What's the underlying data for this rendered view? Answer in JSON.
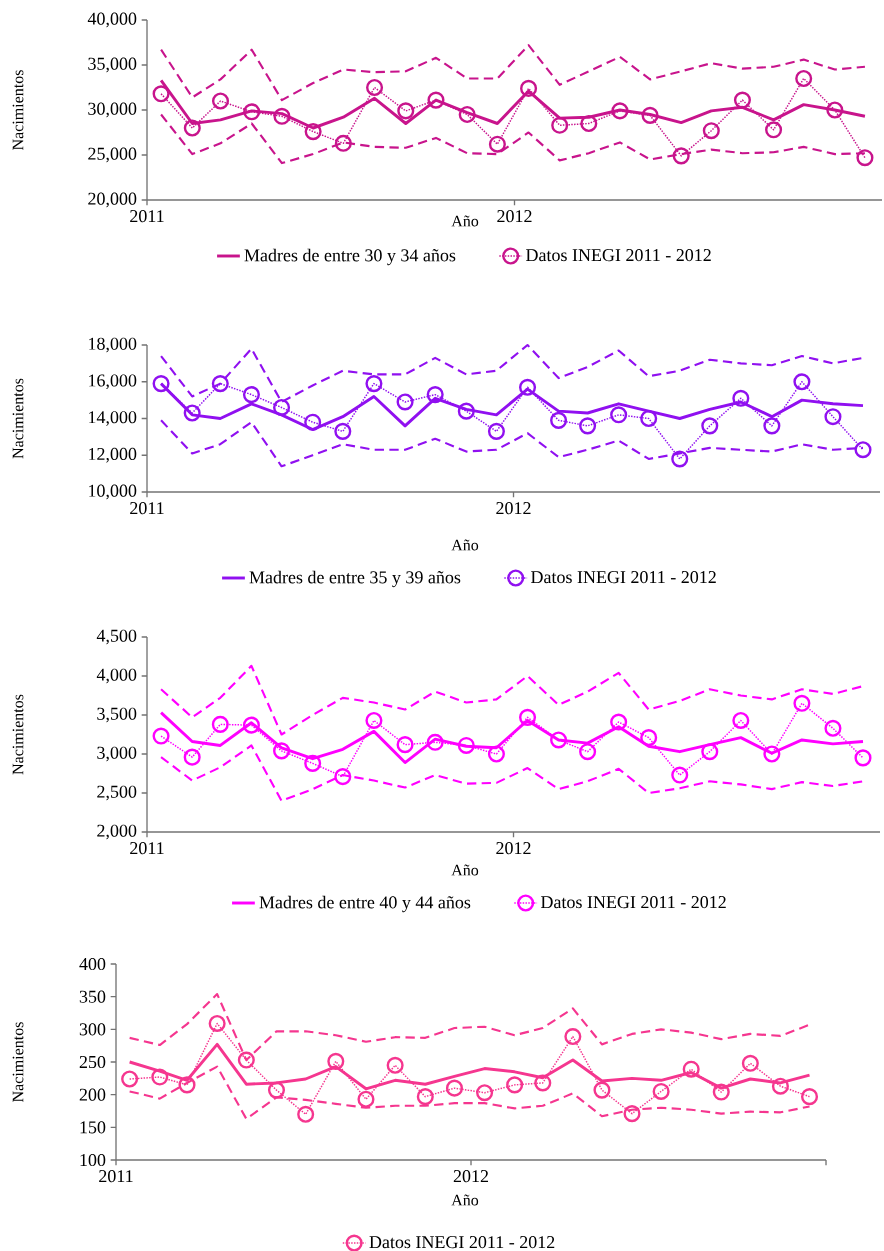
{
  "chart_data": [
    {
      "type": "line",
      "xlabel": "Año",
      "ylabel": "Nacimientos",
      "legend": "bottom",
      "x": [
        "2011-01-15",
        "2011-02-15",
        "2011-03-15",
        "2011-04-15",
        "2011-05-15",
        "2011-06-15",
        "2011-07-15",
        "2011-08-15",
        "2011-09-15",
        "2011-10-15",
        "2011-11-15",
        "2011-12-15",
        "2012-01-15",
        "2012-02-15",
        "2012-03-15",
        "2012-04-15",
        "2012-05-15",
        "2012-06-15",
        "2012-07-15",
        "2012-08-15",
        "2012-09-15",
        "2012-10-15",
        "2012-11-15",
        "2012-12-15"
      ],
      "xlim": [
        "2011-01-01",
        "2013-01-01"
      ],
      "xticks": [
        {
          "value": "2011-01-01",
          "label": "2011"
        },
        {
          "value": "2012-01-01",
          "label": "2012"
        }
      ],
      "ylim": [
        20000,
        40000
      ],
      "yticks": [
        {
          "value": 20000,
          "label": "20,000"
        },
        {
          "value": 25000,
          "label": "25,000"
        },
        {
          "value": 30000,
          "label": "30,000"
        },
        {
          "value": 35000,
          "label": "35,000"
        },
        {
          "value": 40000,
          "label": "40,000"
        }
      ],
      "series": [
        {
          "name": "Madres de entre 30 y 34 años",
          "color": "#c8148c",
          "line_style": "solid",
          "marker": "none",
          "values": [
            33300,
            28500,
            28900,
            29900,
            29600,
            28000,
            29200,
            31300,
            28500,
            31100,
            29700,
            28500,
            32100,
            29100,
            29200,
            30000,
            29500,
            28600,
            29900,
            30300,
            28900,
            30600,
            30000,
            29300
          ]
        },
        {
          "color": "#c8148c",
          "line_style": "dashed",
          "marker": "none",
          "values": [
            36700,
            31400,
            33400,
            36700,
            31100,
            33000,
            34500,
            34200,
            34300,
            35800,
            33500,
            33500,
            37200,
            32800,
            34300,
            35900,
            33400,
            34300,
            35200,
            34600,
            34800,
            35600,
            34500,
            34800
          ]
        },
        {
          "color": "#c8148c",
          "line_style": "dashed",
          "marker": "none",
          "values": [
            29500,
            25100,
            26300,
            28500,
            24100,
            25100,
            26400,
            25900,
            25800,
            26900,
            25200,
            25100,
            27500,
            24400,
            25200,
            26400,
            24500,
            25100,
            25600,
            25200,
            25300,
            25900,
            25100,
            25200
          ]
        },
        {
          "name": "Datos INEGI 2011 - 2012",
          "color": "#c8148c",
          "line_style": "dotted",
          "marker": "circle",
          "values": [
            31800,
            28000,
            31000,
            29800,
            29300,
            27600,
            26300,
            32500,
            29900,
            31100,
            29500,
            26200,
            32400,
            28300,
            28500,
            29900,
            29400,
            24900,
            27700,
            31100,
            27800,
            33500,
            30000,
            24700
          ]
        }
      ]
    },
    {
      "type": "line",
      "xlabel": "Año",
      "ylabel": "Nacimientos",
      "legend": "bottom",
      "x": [
        "2011-01-15",
        "2011-02-15",
        "2011-03-15",
        "2011-04-15",
        "2011-05-15",
        "2011-06-15",
        "2011-07-15",
        "2011-08-15",
        "2011-09-15",
        "2011-10-15",
        "2011-11-15",
        "2011-12-15",
        "2012-01-15",
        "2012-02-15",
        "2012-03-15",
        "2012-04-15",
        "2012-05-15",
        "2012-06-15",
        "2012-07-15",
        "2012-08-15",
        "2012-09-15",
        "2012-10-15",
        "2012-11-15",
        "2012-12-15"
      ],
      "xlim": [
        "2011-01-01",
        "2013-01-01"
      ],
      "xticks": [
        {
          "value": "2011-01-01",
          "label": "2011"
        },
        {
          "value": "2012-01-01",
          "label": "2012"
        }
      ],
      "ylim": [
        10000,
        18000
      ],
      "yticks": [
        {
          "value": 10000,
          "label": "10,000"
        },
        {
          "value": 12000,
          "label": "12,000"
        },
        {
          "value": 14000,
          "label": "14,000"
        },
        {
          "value": 16000,
          "label": "16,000"
        },
        {
          "value": 18000,
          "label": "18,000"
        }
      ],
      "series": [
        {
          "name": "Madres de entre 35 y 39 años",
          "color": "#9010f0",
          "line_style": "solid",
          "marker": "none",
          "values": [
            15900,
            14200,
            14000,
            14800,
            14200,
            13400,
            14100,
            15200,
            13600,
            15100,
            14500,
            14200,
            15600,
            14400,
            14300,
            14800,
            14400,
            14000,
            14500,
            14900,
            14100,
            15000,
            14800,
            14700
          ]
        },
        {
          "color": "#9010f0",
          "line_style": "dashed",
          "marker": "none",
          "values": [
            17400,
            15200,
            15900,
            17800,
            14900,
            15800,
            16600,
            16400,
            16400,
            17300,
            16400,
            16600,
            18000,
            16200,
            16800,
            17700,
            16300,
            16600,
            17200,
            17000,
            16900,
            17400,
            17000,
            17300
          ]
        },
        {
          "color": "#9010f0",
          "line_style": "dashed",
          "marker": "none",
          "values": [
            13900,
            12100,
            12600,
            13800,
            11400,
            12000,
            12600,
            12300,
            12300,
            12900,
            12200,
            12300,
            13200,
            11900,
            12300,
            12800,
            11800,
            12100,
            12400,
            12300,
            12200,
            12600,
            12300,
            12400
          ]
        },
        {
          "name": "Datos INEGI 2011 - 2012",
          "color": "#9010f0",
          "line_style": "dotted",
          "marker": "circle",
          "values": [
            15900,
            14300,
            15900,
            15300,
            14600,
            13800,
            13300,
            15900,
            14900,
            15300,
            14400,
            13300,
            15700,
            13900,
            13600,
            14200,
            14000,
            11800,
            13600,
            15100,
            13600,
            16000,
            14100,
            12300
          ]
        }
      ]
    },
    {
      "type": "line",
      "xlabel": "Año",
      "ylabel": "Nacimientos",
      "legend": "bottom",
      "x": [
        "2011-01-15",
        "2011-02-15",
        "2011-03-15",
        "2011-04-15",
        "2011-05-15",
        "2011-06-15",
        "2011-07-15",
        "2011-08-15",
        "2011-09-15",
        "2011-10-15",
        "2011-11-15",
        "2011-12-15",
        "2012-01-15",
        "2012-02-15",
        "2012-03-15",
        "2012-04-15",
        "2012-05-15",
        "2012-06-15",
        "2012-07-15",
        "2012-08-15",
        "2012-09-15",
        "2012-10-15",
        "2012-11-15",
        "2012-12-15"
      ],
      "xlim": [
        "2011-01-01",
        "2013-01-01"
      ],
      "xticks": [
        {
          "value": "2011-01-01",
          "label": "2011"
        },
        {
          "value": "2012-01-01",
          "label": "2012"
        }
      ],
      "ylim": [
        2000,
        4500
      ],
      "yticks": [
        {
          "value": 2000,
          "label": "2,000"
        },
        {
          "value": 2500,
          "label": "2,500"
        },
        {
          "value": 3000,
          "label": "3,000"
        },
        {
          "value": 3500,
          "label": "3,500"
        },
        {
          "value": 4000,
          "label": "4,000"
        },
        {
          "value": 4500,
          "label": "4,500"
        }
      ],
      "series": [
        {
          "name": "Madres de entre 40 y 44 años",
          "color": "#ff00ff",
          "line_style": "solid",
          "marker": "none",
          "values": [
            3530,
            3160,
            3110,
            3400,
            3080,
            2940,
            3060,
            3290,
            2890,
            3190,
            3100,
            3080,
            3430,
            3180,
            3140,
            3350,
            3100,
            3030,
            3120,
            3210,
            3010,
            3180,
            3130,
            3160
          ]
        },
        {
          "color": "#ff00ff",
          "line_style": "dashed",
          "marker": "none",
          "values": [
            3830,
            3470,
            3720,
            4130,
            3250,
            3500,
            3720,
            3660,
            3570,
            3800,
            3660,
            3700,
            4000,
            3630,
            3800,
            4040,
            3570,
            3680,
            3830,
            3750,
            3700,
            3830,
            3770,
            3870
          ]
        },
        {
          "color": "#ff00ff",
          "line_style": "dashed",
          "marker": "none",
          "values": [
            2960,
            2660,
            2830,
            3110,
            2400,
            2550,
            2730,
            2660,
            2570,
            2730,
            2620,
            2630,
            2820,
            2550,
            2650,
            2810,
            2500,
            2560,
            2650,
            2610,
            2550,
            2640,
            2590,
            2650
          ]
        },
        {
          "name": "Datos INEGI 2011 - 2012",
          "color": "#ff00ff",
          "line_style": "dotted",
          "marker": "circle",
          "values": [
            3230,
            2960,
            3380,
            3370,
            3040,
            2880,
            2710,
            3430,
            3120,
            3150,
            3110,
            3000,
            3470,
            3180,
            3030,
            3410,
            3210,
            2730,
            3030,
            3430,
            3000,
            3650,
            3330,
            2950
          ]
        }
      ]
    },
    {
      "type": "line",
      "xlabel": "Año",
      "ylabel": "Nacimientos",
      "legend": "bottom",
      "x": [
        "2011-01-15",
        "2011-02-15",
        "2011-03-15",
        "2011-04-15",
        "2011-05-15",
        "2011-06-15",
        "2011-07-15",
        "2011-08-15",
        "2011-09-15",
        "2011-10-15",
        "2011-11-15",
        "2011-12-15",
        "2012-01-15",
        "2012-02-15",
        "2012-03-15",
        "2012-04-15",
        "2012-05-15",
        "2012-06-15",
        "2012-07-15",
        "2012-08-15",
        "2012-09-15",
        "2012-10-15",
        "2012-11-15",
        "2012-12-15"
      ],
      "xlim": [
        "2011-01-01",
        "2013-01-01"
      ],
      "xticks": [
        {
          "value": "2011-01-01",
          "label": "2011"
        },
        {
          "value": "2012-01-01",
          "label": "2012"
        },
        {
          "value": "2013-01-01",
          "label": null
        }
      ],
      "ylim": [
        100,
        400
      ],
      "yticks": [
        100,
        150,
        200,
        250,
        300,
        350,
        400
      ],
      "series": [
        {
          "color": "#f5368f",
          "line_style": "solid",
          "marker": "none",
          "values": [
            250,
            236,
            222,
            277,
            216,
            218,
            224,
            243,
            209,
            222,
            216,
            228,
            240,
            235,
            226,
            253,
            221,
            225,
            222,
            234,
            210,
            224,
            218,
            230
          ]
        },
        {
          "color": "#f5368f",
          "line_style": "dashed",
          "marker": "none",
          "values": [
            287,
            276,
            308,
            354,
            253,
            297,
            297,
            291,
            281,
            288,
            287,
            302,
            304,
            291,
            302,
            332,
            277,
            293,
            300,
            295,
            285,
            293,
            290,
            307
          ]
        },
        {
          "color": "#f5368f",
          "line_style": "dashed",
          "marker": "none",
          "values": [
            205,
            194,
            218,
            243,
            163,
            196,
            192,
            186,
            180,
            183,
            183,
            187,
            187,
            179,
            183,
            202,
            167,
            177,
            180,
            177,
            171,
            174,
            173,
            182
          ]
        },
        {
          "name": "Datos INEGI 2011 - 2012",
          "color": "#f5368f",
          "line_style": "dotted",
          "marker": "circle",
          "values": [
            224,
            227,
            215,
            309,
            253,
            207,
            170,
            251,
            193,
            245,
            197,
            210,
            203,
            215,
            218,
            289,
            207,
            171,
            205,
            239,
            204,
            248,
            213,
            197
          ]
        }
      ]
    }
  ]
}
